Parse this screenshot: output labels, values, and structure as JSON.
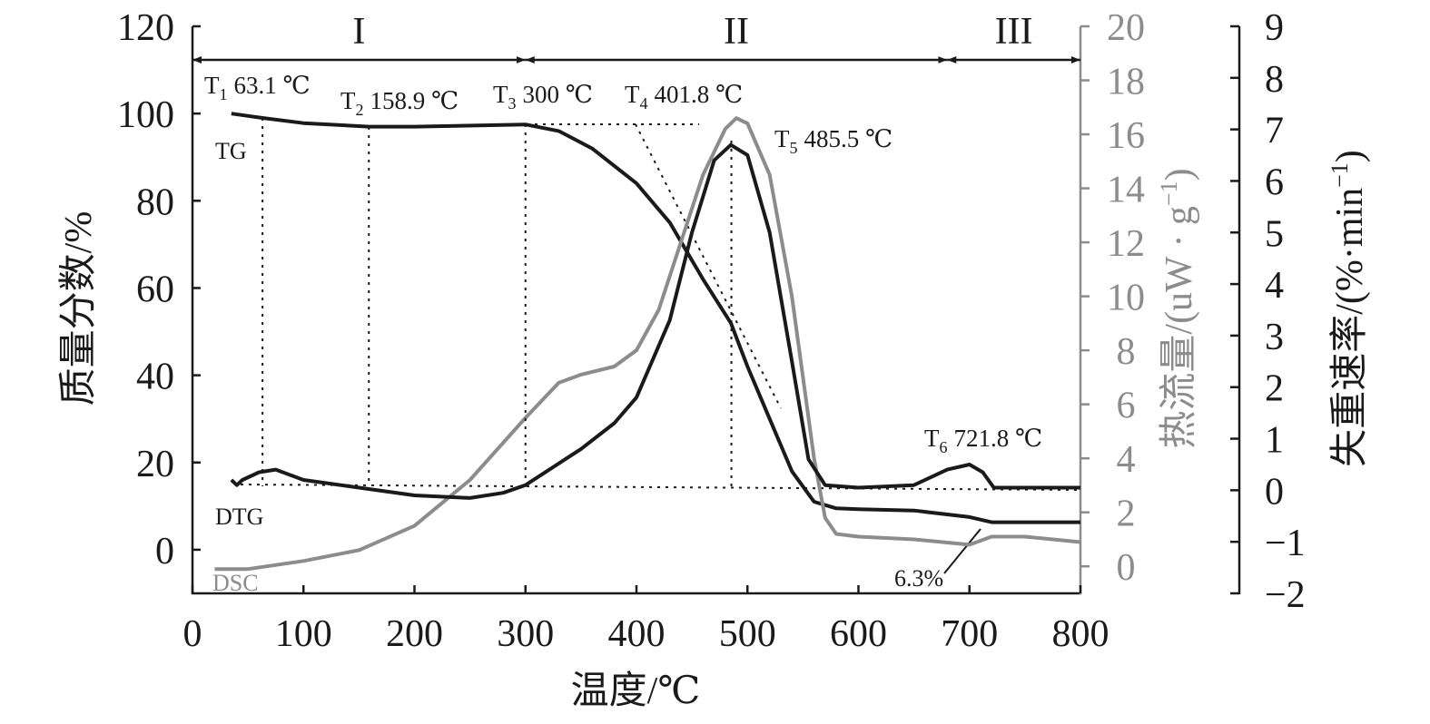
{
  "chart_data": {
    "type": "line",
    "xlabel": "温度/℃",
    "ylabel": "质量分数/%",
    "y2label": {
      "text": "热流量/(uW · g",
      "sup": "−1",
      "tail": ")"
    },
    "y3label": {
      "text": "失重速率/(%·min",
      "sup": "−1",
      "tail": ")"
    },
    "xlim": [
      0,
      800
    ],
    "xticks": [
      0,
      100,
      200,
      300,
      400,
      500,
      600,
      700,
      800
    ],
    "ylim": [
      -10,
      120
    ],
    "yticks": [
      0,
      20,
      40,
      60,
      80,
      100,
      120
    ],
    "y2lim": [
      -1,
      20
    ],
    "y2ticks": [
      0,
      2,
      4,
      6,
      8,
      10,
      12,
      14,
      16,
      18,
      20
    ],
    "y3lim": [
      -2,
      9
    ],
    "y3ticks": [
      {
        "value": -2,
        "label": "−2"
      },
      {
        "value": -1,
        "label": "−1"
      },
      0,
      1,
      2,
      3,
      4,
      5,
      6,
      7,
      8,
      9
    ],
    "series": [
      {
        "name": "TG",
        "axis": "y",
        "color": "#1a1a1a",
        "x": [
          35,
          63,
          100,
          159,
          200,
          300,
          330,
          360,
          400,
          430,
          460,
          485,
          500,
          520,
          540,
          560,
          580,
          600,
          650,
          700,
          720,
          800
        ],
        "values": [
          100,
          99,
          97.8,
          97,
          97,
          97.5,
          96,
          92,
          84,
          75,
          62,
          52,
          42,
          30,
          18,
          11,
          9.5,
          9.3,
          9,
          7.5,
          6.3,
          6.3
        ]
      },
      {
        "name": "DSC",
        "axis": "y2",
        "color": "#8c8c8c",
        "x": [
          20,
          50,
          100,
          150,
          200,
          250,
          300,
          330,
          350,
          380,
          400,
          420,
          440,
          460,
          480,
          490,
          500,
          520,
          540,
          560,
          570,
          580,
          600,
          650,
          700,
          720,
          750,
          800
        ],
        "values": [
          -0.1,
          -0.1,
          0.2,
          0.6,
          1.5,
          3.2,
          5.5,
          6.8,
          7.1,
          7.4,
          8,
          9.5,
          12,
          14.5,
          16.2,
          16.6,
          16.4,
          14.5,
          10,
          4,
          1.8,
          1.2,
          1.1,
          1.0,
          0.8,
          1.1,
          1.1,
          0.9
        ]
      },
      {
        "name": "DTG",
        "axis": "y3",
        "color": "#1a1a1a",
        "x": [
          35,
          40,
          45,
          60,
          75,
          100,
          150,
          200,
          250,
          280,
          300,
          350,
          380,
          400,
          430,
          450,
          470,
          485,
          500,
          520,
          540,
          555,
          570,
          600,
          650,
          680,
          700,
          712,
          722,
          800
        ],
        "values": [
          0.2,
          0.1,
          0.2,
          0.35,
          0.4,
          0.2,
          0.05,
          -0.1,
          -0.15,
          -0.05,
          0.1,
          0.8,
          1.3,
          1.8,
          3.3,
          5,
          6.4,
          6.7,
          6.5,
          5,
          2.5,
          0.6,
          0.1,
          0.05,
          0.1,
          0.4,
          0.5,
          0.35,
          0.05,
          0.05
        ]
      }
    ],
    "regions": [
      {
        "label": "I",
        "start": 0,
        "end": 300
      },
      {
        "label": "II",
        "start": 300,
        "end": 680
      },
      {
        "label": "III",
        "start": 680,
        "end": 800
      }
    ],
    "annotations": [
      {
        "symbol": "T",
        "subscript": "1",
        "x": 63.1,
        "label": "63.1 ℃"
      },
      {
        "symbol": "T",
        "subscript": "2",
        "x": 158.9,
        "label": "158.9 ℃"
      },
      {
        "symbol": "T",
        "subscript": "3",
        "x": 300,
        "label": "300 ℃"
      },
      {
        "symbol": "T",
        "subscript": "4",
        "x": 401.8,
        "label": "401.8 ℃"
      },
      {
        "symbol": "T",
        "subscript": "5",
        "x": 485.5,
        "label": "485.5 ℃"
      },
      {
        "symbol": "T",
        "subscript": "6",
        "x": 721.8,
        "label": "721.8 ℃"
      }
    ],
    "residue_label": "6.3%"
  }
}
